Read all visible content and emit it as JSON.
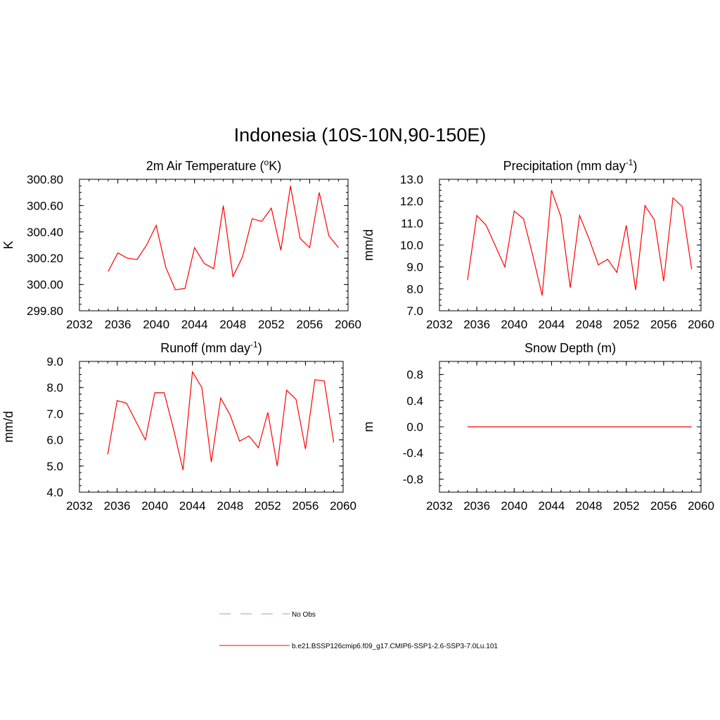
{
  "title": "Indonesia (10S-10N,90-150E)",
  "colors": {
    "series": "#ff0000",
    "obs": "#9999dd",
    "axis": "#000000"
  },
  "legend": [
    {
      "label": "No Obs",
      "style": "dashed",
      "color": "#9999dd"
    },
    {
      "label": "b.e21.BSSP126cmip6.f09_g17.CMIP6-SSP1-2.6-SSP3-7.0Lu.101",
      "style": "solid",
      "color": "#ff0000"
    }
  ],
  "chart_data": [
    {
      "type": "line",
      "title": "2m Air Temperature (°K)",
      "title_parts": {
        "main": "2m Air Temperature (",
        "sup": "o",
        "tail": "K)"
      },
      "xlabel": "",
      "ylabel": "K",
      "xlim": [
        2032,
        2060
      ],
      "ylim": [
        299.8,
        300.8
      ],
      "xticks": [
        2032,
        2036,
        2040,
        2044,
        2048,
        2052,
        2056,
        2060
      ],
      "yticks": [
        "299.80",
        "300.00",
        "300.20",
        "300.40",
        "300.60",
        "300.80"
      ],
      "series": [
        {
          "x": [
            2035,
            2036,
            2037,
            2038,
            2039,
            2040,
            2041,
            2042,
            2043,
            2044,
            2045,
            2046,
            2047,
            2048,
            2049,
            2050,
            2051,
            2052,
            2053,
            2054,
            2055,
            2056,
            2057,
            2058,
            2059
          ],
          "values": [
            300.1,
            300.24,
            300.2,
            300.19,
            300.3,
            300.45,
            300.13,
            299.96,
            299.97,
            300.28,
            300.16,
            300.12,
            300.6,
            300.06,
            300.21,
            300.5,
            300.48,
            300.58,
            300.26,
            300.75,
            300.35,
            300.28,
            300.7,
            300.37,
            300.28
          ]
        }
      ]
    },
    {
      "type": "line",
      "title": "Precipitation (mm day-1)",
      "title_parts": {
        "main": "Precipitation (mm day",
        "sup": "-1",
        "tail": ")"
      },
      "xlabel": "",
      "ylabel": "mm/d",
      "xlim": [
        2032,
        2060
      ],
      "ylim": [
        7.0,
        13.0
      ],
      "xticks": [
        2032,
        2036,
        2040,
        2044,
        2048,
        2052,
        2056,
        2060
      ],
      "yticks": [
        "7.0",
        "8.0",
        "9.0",
        "10.0",
        "11.0",
        "12.0",
        "13.0"
      ],
      "series": [
        {
          "x": [
            2035,
            2036,
            2037,
            2038,
            2039,
            2040,
            2041,
            2042,
            2043,
            2044,
            2045,
            2046,
            2047,
            2048,
            2049,
            2050,
            2051,
            2052,
            2053,
            2054,
            2055,
            2056,
            2057,
            2058,
            2059
          ],
          "values": [
            8.4,
            11.35,
            10.9,
            9.95,
            9.0,
            11.55,
            11.2,
            9.5,
            7.7,
            12.5,
            11.3,
            8.05,
            11.35,
            10.3,
            9.1,
            9.35,
            8.75,
            10.9,
            7.95,
            11.8,
            11.15,
            8.35,
            12.15,
            11.75,
            8.9
          ]
        }
      ]
    },
    {
      "type": "line",
      "title": "Runoff (mm day-1)",
      "title_parts": {
        "main": "Runoff (mm day",
        "sup": "-1",
        "tail": ")"
      },
      "xlabel": "",
      "ylabel": "mm/d",
      "xlim": [
        2032,
        2060
      ],
      "ylim": [
        4.0,
        9.0
      ],
      "xticks": [
        2032,
        2036,
        2040,
        2044,
        2048,
        2052,
        2056,
        2060
      ],
      "yticks": [
        "4.0",
        "5.0",
        "6.0",
        "7.0",
        "8.0",
        "9.0"
      ],
      "series": [
        {
          "x": [
            2035,
            2036,
            2037,
            2038,
            2039,
            2040,
            2041,
            2042,
            2043,
            2044,
            2045,
            2046,
            2047,
            2048,
            2049,
            2050,
            2051,
            2052,
            2053,
            2054,
            2055,
            2056,
            2057,
            2058,
            2059
          ],
          "values": [
            5.45,
            7.5,
            7.4,
            6.7,
            6.0,
            7.8,
            7.8,
            6.4,
            4.85,
            8.6,
            8.0,
            5.15,
            7.6,
            6.95,
            5.95,
            6.15,
            5.7,
            7.05,
            5.0,
            7.9,
            7.55,
            5.65,
            8.3,
            8.25,
            5.9
          ]
        }
      ]
    },
    {
      "type": "line",
      "title": "Snow Depth (m)",
      "title_parts": {
        "main": "Snow Depth (m)",
        "sup": "",
        "tail": ""
      },
      "xlabel": "",
      "ylabel": "m",
      "xlim": [
        2032,
        2060
      ],
      "ylim": [
        -1.0,
        1.0
      ],
      "xticks": [
        2032,
        2036,
        2040,
        2044,
        2048,
        2052,
        2056,
        2060
      ],
      "yticks": [
        "-0.8",
        "-0.4",
        "0.0",
        "0.4",
        "0.8"
      ],
      "series": [
        {
          "x": [
            2035,
            2059
          ],
          "values": [
            0.0,
            0.0
          ]
        }
      ]
    }
  ]
}
